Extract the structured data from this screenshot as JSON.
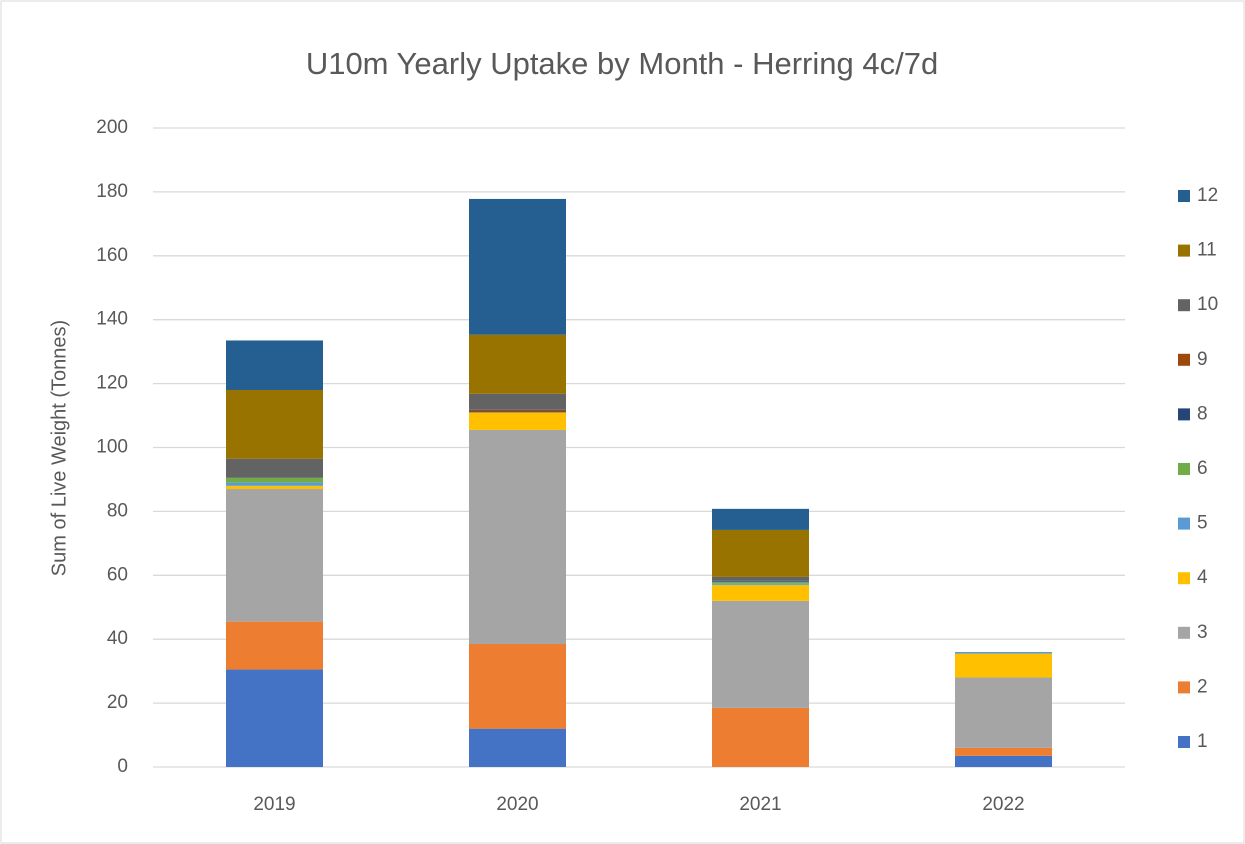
{
  "chart_data": {
    "type": "stacked_bar",
    "title": "U10m Yearly Uptake by Month - Herring 4c/7d",
    "y_label": "Sum of Live Weight (Tonnes)",
    "categories": [
      "2019",
      "2020",
      "2021",
      "2022"
    ],
    "series": [
      {
        "name": "1",
        "color": "#4472c4",
        "values": [
          30.5,
          12,
          0,
          3.5
        ]
      },
      {
        "name": "2",
        "color": "#ed7d31",
        "values": [
          15,
          26.5,
          18.5,
          2.5
        ]
      },
      {
        "name": "3",
        "color": "#a5a5a5",
        "values": [
          41.5,
          67,
          33.5,
          22
        ]
      },
      {
        "name": "4",
        "color": "#ffc000",
        "values": [
          1,
          5.5,
          5,
          7.5
        ]
      },
      {
        "name": "5",
        "color": "#5b9bd5",
        "values": [
          1,
          0,
          0.5,
          0.5
        ]
      },
      {
        "name": "6",
        "color": "#70ad47",
        "values": [
          1.5,
          0,
          0.5,
          0
        ]
      },
      {
        "name": "8",
        "color": "#264478",
        "values": [
          0,
          0.3,
          0.3,
          0
        ]
      },
      {
        "name": "9",
        "color": "#9e480e",
        "values": [
          0,
          0.5,
          0,
          0
        ]
      },
      {
        "name": "10",
        "color": "#636363",
        "values": [
          6,
          5,
          1.2,
          0
        ]
      },
      {
        "name": "11",
        "color": "#997300",
        "values": [
          21.5,
          18.5,
          14.7,
          0
        ]
      },
      {
        "name": "12",
        "color": "#255e91",
        "values": [
          15.5,
          42.5,
          6.6,
          0
        ]
      }
    ],
    "ylim": [
      0,
      200
    ],
    "yticks": [
      0,
      20,
      40,
      60,
      80,
      100,
      120,
      140,
      160,
      180,
      200
    ],
    "grid": true,
    "legend": "right"
  }
}
